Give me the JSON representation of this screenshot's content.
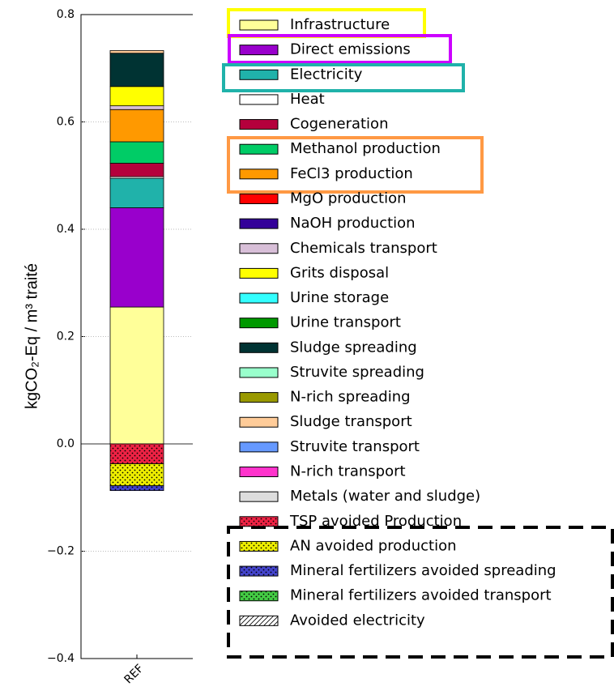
{
  "chart_data": {
    "type": "stacked-bar",
    "y_label": "kgCO₂-Eq / m³ traité",
    "categories": [
      "REF"
    ],
    "ylim": [
      -0.4,
      0.8
    ],
    "yticks": [
      {
        "value": -0.4,
        "label": "−0.4"
      },
      {
        "value": -0.2,
        "label": "−0.2"
      },
      {
        "value": 0,
        "label": "0.0"
      },
      0.2,
      0.4,
      0.6,
      0.8
    ],
    "grid": true,
    "series": [
      {
        "name": "Infrastructure",
        "color": "#ffff99",
        "values": [
          0.255
        ]
      },
      {
        "name": "Direct emissions",
        "color": "#9900cc",
        "values": [
          0.185
        ]
      },
      {
        "name": "Electricity",
        "color": "#20b2aa",
        "values": [
          0.055
        ]
      },
      {
        "name": "Heat",
        "color": "#ffffff",
        "values": [
          0.003
        ]
      },
      {
        "name": "Cogeneration",
        "color": "#b5003c",
        "values": [
          0.025
        ]
      },
      {
        "name": "Methanol production",
        "color": "#00cc66",
        "values": [
          0.04
        ]
      },
      {
        "name": "FeCl3 production",
        "color": "#ff9900",
        "values": [
          0.06
        ]
      },
      {
        "name": "MgO production",
        "color": "#ff0000",
        "values": [
          0
        ]
      },
      {
        "name": "NaOH production",
        "color": "#330099",
        "values": [
          0
        ]
      },
      {
        "name": "Chemicals transport",
        "color": "#d8bfd8",
        "values": [
          0.007
        ]
      },
      {
        "name": "Grits disposal",
        "color": "#ffff00",
        "values": [
          0.036
        ]
      },
      {
        "name": "Urine storage",
        "color": "#33ffff",
        "values": [
          0
        ]
      },
      {
        "name": "Urine transport",
        "color": "#009900",
        "values": [
          0
        ]
      },
      {
        "name": "Sludge spreading",
        "color": "#003333",
        "values": [
          0.062
        ]
      },
      {
        "name": "Struvite spreading",
        "color": "#99ffcc",
        "values": [
          0
        ]
      },
      {
        "name": "N-rich spreading",
        "color": "#999900",
        "values": [
          0
        ]
      },
      {
        "name": "Sludge transport",
        "color": "#ffcc99",
        "values": [
          0.005
        ]
      },
      {
        "name": "Struvite transport",
        "color": "#6699ff",
        "values": [
          0
        ]
      },
      {
        "name": "N-rich transport",
        "color": "#ff33cc",
        "values": [
          0
        ]
      },
      {
        "name": "Metals (water and sludge)",
        "color": "#dddddd",
        "values": [
          0
        ]
      },
      {
        "name": "TSP avoided Production",
        "color": "#ee2244",
        "pattern": "dots",
        "values": [
          -0.037
        ]
      },
      {
        "name": "AN avoided production",
        "color": "#eeee00",
        "pattern": "dots",
        "values": [
          -0.041
        ]
      },
      {
        "name": "Mineral fertilizers avoided spreading",
        "color": "#4444cc",
        "pattern": "dots",
        "values": [
          -0.009
        ]
      },
      {
        "name": "Mineral fertilizers avoided transport",
        "color": "#44cc44",
        "pattern": "dots",
        "values": [
          0
        ]
      },
      {
        "name": "Avoided electricity",
        "color": "#ffffff",
        "pattern": "hatch",
        "values": [
          0
        ]
      }
    ]
  }
}
